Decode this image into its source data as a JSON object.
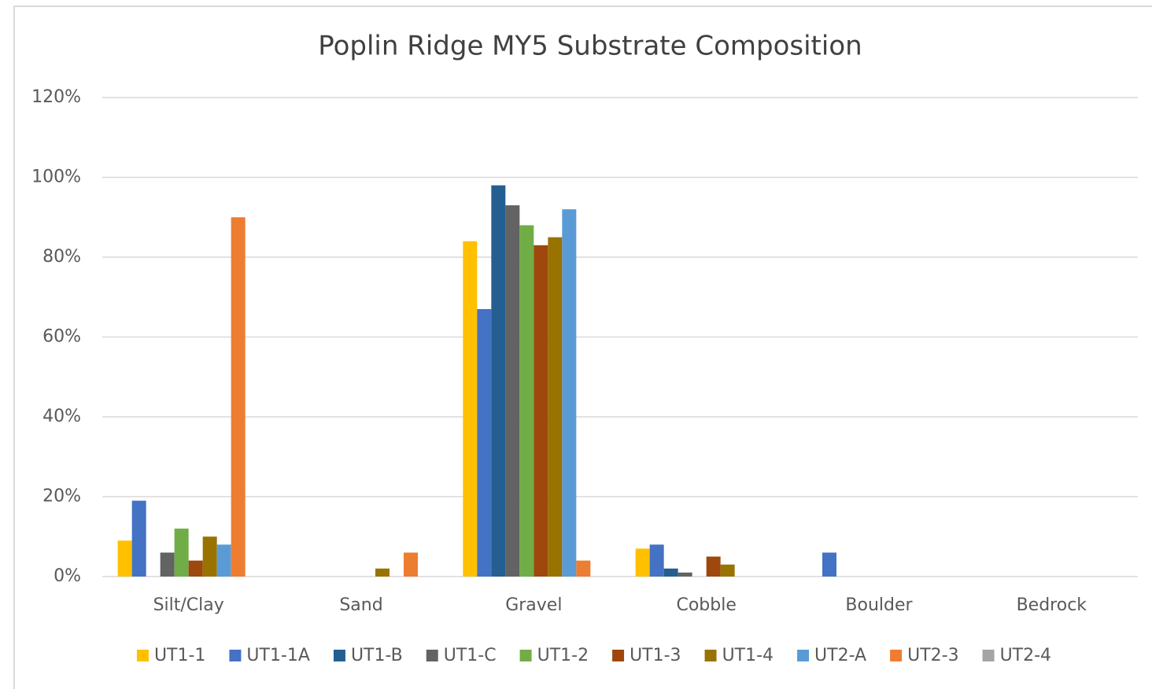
{
  "chart_data": {
    "type": "bar",
    "title": "Poplin Ridge MY5 Substrate Composition",
    "categories": [
      "Silt/Clay",
      "Sand",
      "Gravel",
      "Cobble",
      "Boulder",
      "Bedrock"
    ],
    "series": [
      {
        "name": "UT1-1",
        "color": "#ffc000",
        "values": [
          9,
          0,
          84,
          7,
          0,
          0
        ]
      },
      {
        "name": "UT1-1A",
        "color": "#4472c4",
        "values": [
          19,
          0,
          67,
          8,
          6,
          0
        ]
      },
      {
        "name": "UT1-B",
        "color": "#255e91",
        "values": [
          0,
          0,
          98,
          2,
          0,
          0
        ]
      },
      {
        "name": "UT1-C",
        "color": "#636363",
        "values": [
          6,
          0,
          93,
          1,
          0,
          0
        ]
      },
      {
        "name": "UT1-2",
        "color": "#70ad47",
        "values": [
          12,
          0,
          88,
          0,
          0,
          0
        ]
      },
      {
        "name": "UT1-3",
        "color": "#9e480e",
        "values": [
          4,
          0,
          83,
          5,
          0,
          0
        ]
      },
      {
        "name": "UT1-4",
        "color": "#997300",
        "values": [
          10,
          2,
          85,
          3,
          0,
          0
        ]
      },
      {
        "name": "UT2-A",
        "color": "#5b9bd5",
        "values": [
          8,
          0,
          92,
          0,
          0,
          0
        ]
      },
      {
        "name": "UT2-3",
        "color": "#ed7d31",
        "values": [
          90,
          6,
          4,
          0,
          0,
          0
        ]
      },
      {
        "name": "UT2-4",
        "color": "#a5a5a5",
        "values": [
          0,
          0,
          0,
          0,
          0,
          0
        ]
      }
    ],
    "ylim": [
      0,
      120
    ],
    "yticks": [
      {
        "value": 0,
        "label": "0%"
      },
      {
        "value": 20,
        "label": "20%"
      },
      {
        "value": 40,
        "label": "40%"
      },
      {
        "value": 60,
        "label": "60%"
      },
      {
        "value": 80,
        "label": "80%"
      },
      {
        "value": 100,
        "label": "100%"
      },
      {
        "value": 120,
        "label": "120%"
      }
    ],
    "grid": true,
    "legend": "bottom"
  }
}
